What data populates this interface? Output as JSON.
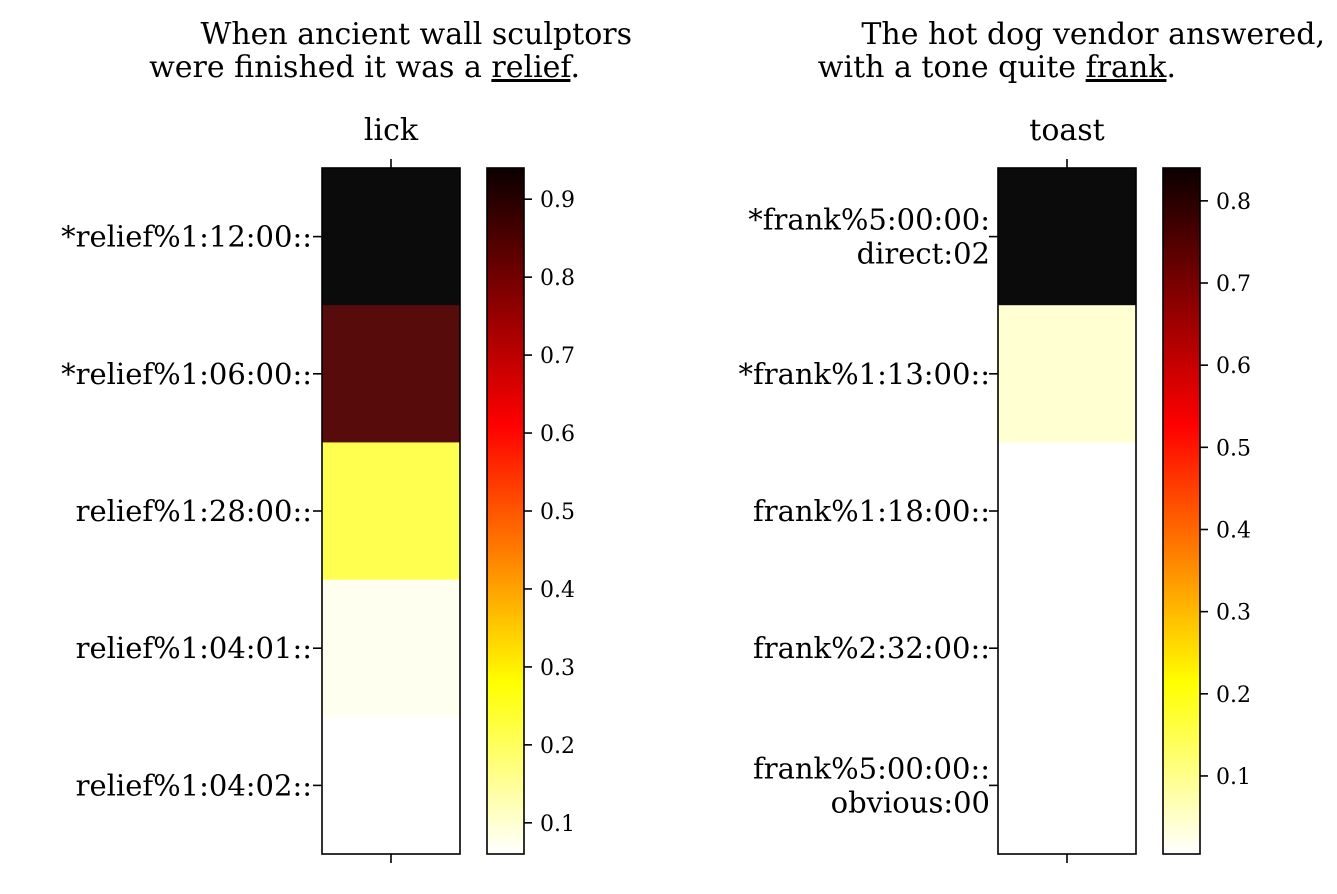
{
  "chart_data": [
    {
      "type": "heatmap",
      "title": {
        "line1": "When ancient wall sculptors",
        "line2_prefix": "were finished it was a ",
        "line2_keyword": "relief",
        "line2_suffix": "."
      },
      "column": "lick",
      "rows": [
        {
          "label_lines": [
            "*relief%1:12:00::"
          ],
          "value": 0.94
        },
        {
          "label_lines": [
            "*relief%1:06:00::"
          ],
          "value": 0.84
        },
        {
          "label_lines": [
            "relief%1:28:00::"
          ],
          "value": 0.22
        },
        {
          "label_lines": [
            "relief%1:04:01::"
          ],
          "value": 0.075
        },
        {
          "label_lines": [
            "relief%1:04:02::"
          ],
          "value": 0.06
        }
      ],
      "colorbar": {
        "colormap": "hot_r",
        "vmin": 0.06,
        "vmax": 0.94,
        "ticks": [
          "0.1",
          "0.2",
          "0.3",
          "0.4",
          "0.5",
          "0.6",
          "0.7",
          "0.8",
          "0.9"
        ]
      }
    },
    {
      "type": "heatmap",
      "title": {
        "line1": "The hot dog vendor answered,",
        "line2_prefix": "with a tone quite ",
        "line2_keyword": "frank",
        "line2_suffix": "."
      },
      "column": "toast",
      "rows": [
        {
          "label_lines": [
            "*frank%5:00:00:",
            "direct:02"
          ],
          "value": 0.84
        },
        {
          "label_lines": [
            "*frank%1:13:00::"
          ],
          "value": 0.045
        },
        {
          "label_lines": [
            "frank%1:18:00::"
          ],
          "value": 0.005
        },
        {
          "label_lines": [
            "frank%2:32:00::"
          ],
          "value": 0.005
        },
        {
          "label_lines": [
            "frank%5:00:00::",
            "obvious:00"
          ],
          "value": 0.005
        }
      ],
      "colorbar": {
        "colormap": "hot_r",
        "vmin": 0.005,
        "vmax": 0.84,
        "ticks": [
          "0.1",
          "0.2",
          "0.3",
          "0.4",
          "0.5",
          "0.6",
          "0.7",
          "0.8"
        ]
      }
    }
  ]
}
